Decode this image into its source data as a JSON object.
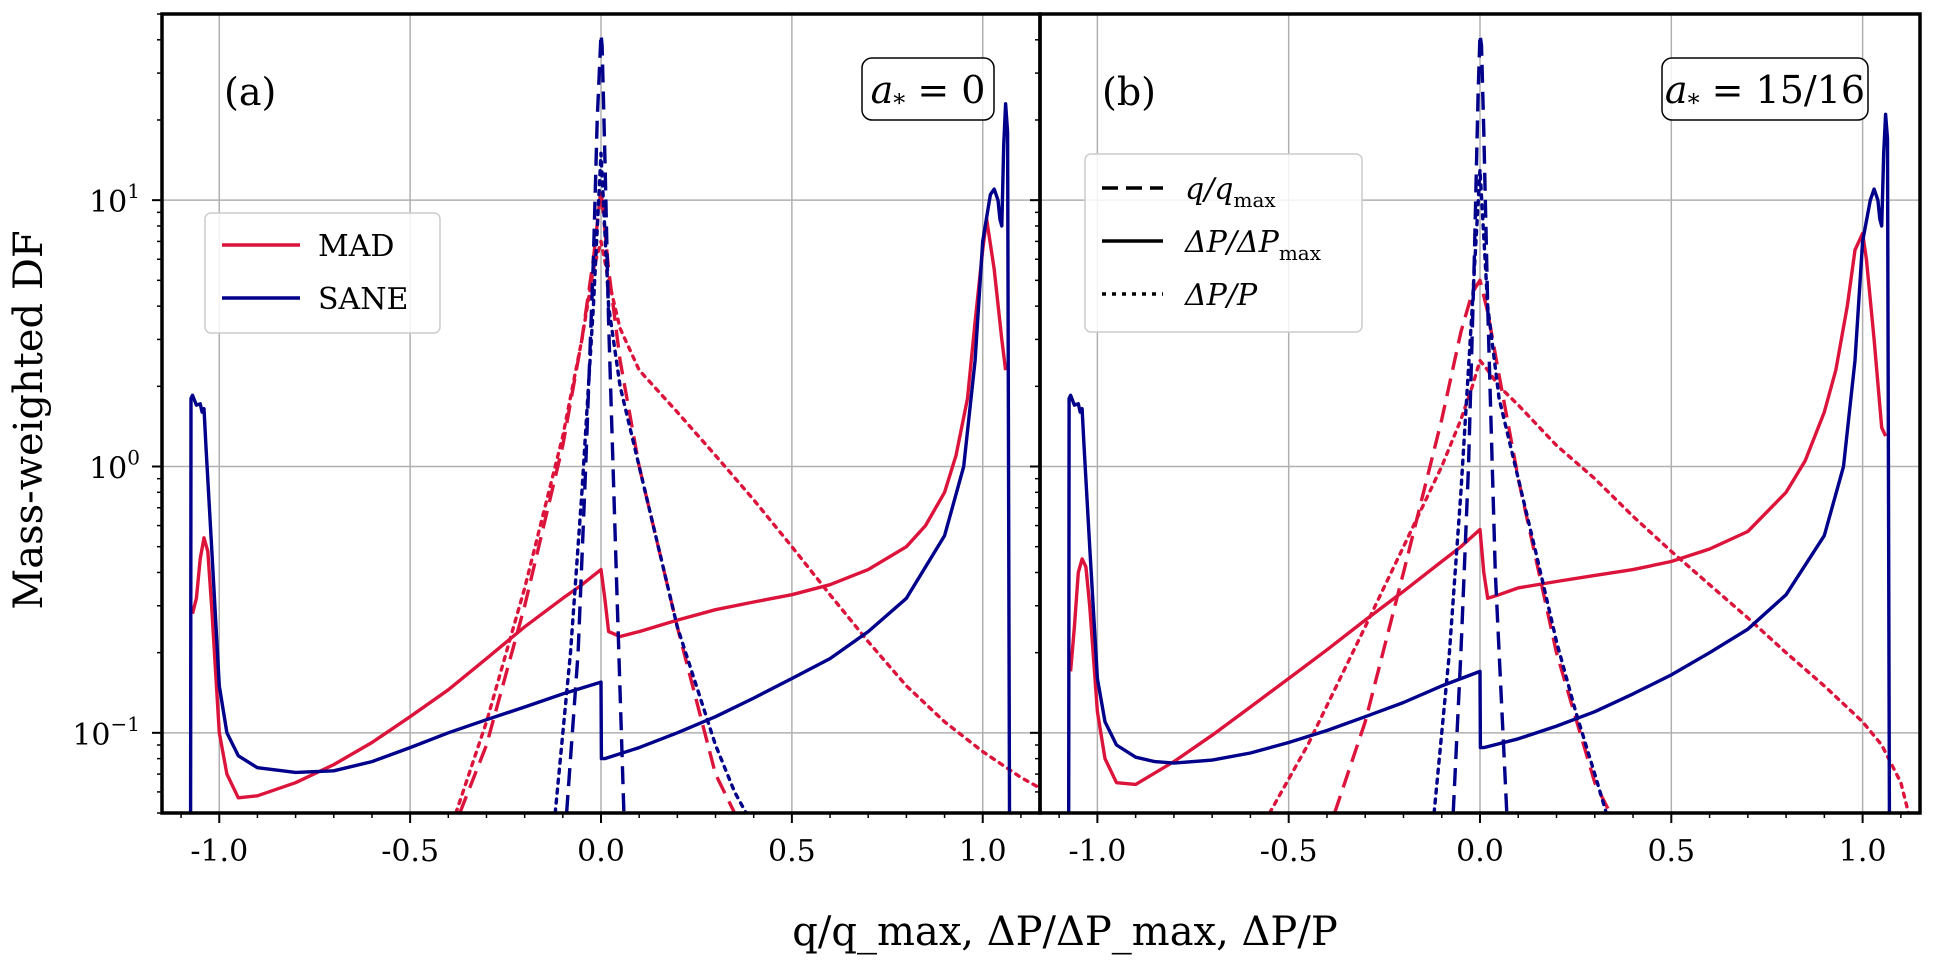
{
  "chart_data": {
    "type": "line",
    "xlabel": "q/q_max, ΔP/ΔP_max, ΔP/P",
    "ylabel": "Mass-weighted DF",
    "xlim": [
      -1.15,
      1.15
    ],
    "yscale": "log",
    "ylim": [
      0.05,
      50
    ],
    "x_ticks": [
      -1.0,
      -0.5,
      0.0,
      0.5,
      1.0
    ],
    "x_tick_labels": [
      "-1.0",
      "-0.5",
      "0.0",
      "0.5",
      "1.0"
    ],
    "y_ticks": [
      0.1,
      1,
      10
    ],
    "y_tick_labels": [
      "10",
      "10",
      "10"
    ],
    "y_tick_exponents": [
      "−1",
      "0",
      "1"
    ],
    "grid": true,
    "colors": {
      "MAD": "#dc143c",
      "SANE": "#00008b"
    },
    "legend_models": {
      "placement": "upper-left of panel (a)",
      "entries": [
        {
          "label": "MAD",
          "color": "#dc143c"
        },
        {
          "label": "SANE",
          "color": "#00008b"
        }
      ]
    },
    "legend_quantities": {
      "placement": "upper-left of panel (b)",
      "entries": [
        {
          "label": "q/q",
          "sub": "max",
          "style": "dashed"
        },
        {
          "label": "ΔP/ΔP",
          "sub": "max",
          "style": "solid"
        },
        {
          "label": "ΔP/P",
          "sub": "",
          "style": "dotted"
        }
      ]
    },
    "panels": [
      {
        "label": "(a)",
        "spin_label": "a",
        "spin_sub": "*",
        "spin_value": " = 0",
        "series": [
          {
            "name": "MAD q/q_max",
            "model": "MAD",
            "style": "dashed",
            "x": [
              -0.37,
              -0.3,
              -0.2,
              -0.1,
              -0.05,
              -0.02,
              0.0,
              0.02,
              0.05,
              0.1,
              0.2,
              0.3,
              0.35
            ],
            "y": [
              0.05,
              0.09,
              0.3,
              1.2,
              3.0,
              6.0,
              11.0,
              5.5,
              2.5,
              1.0,
              0.25,
              0.07,
              0.05
            ]
          },
          {
            "name": "MAD ΔP/ΔP_max",
            "model": "MAD",
            "style": "solid",
            "x": [
              -1.07,
              -1.06,
              -1.05,
              -1.04,
              -1.03,
              -1.02,
              -1.0,
              -0.98,
              -0.95,
              -0.9,
              -0.8,
              -0.7,
              -0.6,
              -0.5,
              -0.4,
              -0.3,
              -0.2,
              -0.1,
              -0.05,
              0.0,
              0.01,
              0.02,
              0.05,
              0.1,
              0.2,
              0.3,
              0.4,
              0.5,
              0.6,
              0.7,
              0.8,
              0.85,
              0.9,
              0.93,
              0.96,
              0.98,
              1.0,
              1.01,
              1.03,
              1.05,
              1.06
            ],
            "y": [
              0.28,
              0.32,
              0.45,
              0.54,
              0.48,
              0.3,
              0.1,
              0.07,
              0.057,
              0.058,
              0.065,
              0.076,
              0.092,
              0.115,
              0.145,
              0.19,
              0.25,
              0.32,
              0.36,
              0.41,
              0.32,
              0.24,
              0.23,
              0.24,
              0.265,
              0.29,
              0.31,
              0.33,
              0.36,
              0.41,
              0.5,
              0.6,
              0.8,
              1.1,
              1.8,
              3.5,
              6.5,
              8.5,
              5.5,
              3.0,
              2.3
            ]
          },
          {
            "name": "MAD ΔP/P",
            "model": "MAD",
            "style": "dotted",
            "x": [
              -0.38,
              -0.3,
              -0.2,
              -0.1,
              -0.05,
              -0.02,
              0.0,
              0.02,
              0.05,
              0.1,
              0.2,
              0.3,
              0.4,
              0.5,
              0.6,
              0.7,
              0.8,
              0.9,
              1.0,
              1.1,
              1.15
            ],
            "y": [
              0.05,
              0.11,
              0.35,
              1.3,
              3.0,
              5.5,
              7.0,
              5.0,
              3.3,
              2.3,
              1.6,
              1.1,
              0.75,
              0.5,
              0.33,
              0.22,
              0.15,
              0.11,
              0.085,
              0.068,
              0.062
            ]
          },
          {
            "name": "SANE q/q_max",
            "model": "SANE",
            "style": "dashed",
            "x": [
              -0.09,
              -0.06,
              -0.04,
              -0.02,
              -0.01,
              0.0,
              0.003,
              0.01,
              0.02,
              0.04,
              0.06
            ],
            "y": [
              0.05,
              0.2,
              1.0,
              6.0,
              20.0,
              42.0,
              38.0,
              15.0,
              3.5,
              0.4,
              0.05
            ]
          },
          {
            "name": "SANE ΔP/ΔP_max",
            "model": "SANE",
            "style": "solid",
            "x": [
              -1.075,
              -1.074,
              -1.07,
              -1.06,
              -1.05,
              -1.045,
              -1.04,
              -1.035,
              -1.02,
              -1.0,
              -0.98,
              -0.95,
              -0.9,
              -0.8,
              -0.7,
              -0.6,
              -0.5,
              -0.4,
              -0.3,
              -0.2,
              -0.1,
              0.0,
              0.001,
              0.01,
              0.1,
              0.2,
              0.3,
              0.4,
              0.5,
              0.6,
              0.7,
              0.8,
              0.9,
              0.95,
              0.98,
              1.0,
              1.02,
              1.03,
              1.04,
              1.045,
              1.05,
              1.055,
              1.06,
              1.065,
              1.07
            ],
            "y": [
              0.05,
              1.8,
              1.85,
              1.7,
              1.72,
              1.6,
              1.65,
              1.2,
              0.5,
              0.15,
              0.1,
              0.082,
              0.074,
              0.071,
              0.072,
              0.078,
              0.088,
              0.1,
              0.112,
              0.125,
              0.14,
              0.155,
              0.08,
              0.08,
              0.088,
              0.1,
              0.115,
              0.135,
              0.16,
              0.19,
              0.24,
              0.32,
              0.55,
              1.0,
              2.5,
              7.0,
              10.5,
              11.0,
              10.0,
              8.5,
              8.0,
              16.0,
              23.0,
              18.0,
              0.05
            ]
          },
          {
            "name": "SANE ΔP/P",
            "model": "SANE",
            "style": "dotted",
            "x": [
              -0.12,
              -0.08,
              -0.05,
              -0.02,
              0.0,
              0.02,
              0.05,
              0.1,
              0.15,
              0.2,
              0.25,
              0.3,
              0.35,
              0.38
            ],
            "y": [
              0.05,
              0.2,
              0.8,
              4.0,
              15.0,
              4.0,
              2.0,
              1.0,
              0.5,
              0.25,
              0.15,
              0.09,
              0.06,
              0.05
            ]
          }
        ]
      },
      {
        "label": "(b)",
        "spin_label": "a",
        "spin_sub": "*",
        "spin_value": " = 15/16",
        "series": [
          {
            "name": "MAD q/q_max",
            "model": "MAD",
            "style": "dashed",
            "x": [
              -0.38,
              -0.3,
              -0.2,
              -0.1,
              -0.05,
              -0.02,
              0.0,
              0.02,
              0.05,
              0.1,
              0.2,
              0.3,
              0.34
            ],
            "y": [
              0.05,
              0.11,
              0.4,
              1.5,
              3.2,
              4.5,
              5.0,
              3.8,
              2.2,
              0.9,
              0.2,
              0.065,
              0.05
            ]
          },
          {
            "name": "MAD ΔP/ΔP_max",
            "model": "MAD",
            "style": "solid",
            "x": [
              -1.07,
              -1.06,
              -1.05,
              -1.04,
              -1.03,
              -1.02,
              -1.0,
              -0.98,
              -0.95,
              -0.9,
              -0.8,
              -0.7,
              -0.6,
              -0.5,
              -0.4,
              -0.3,
              -0.2,
              -0.1,
              -0.05,
              0.0,
              0.01,
              0.02,
              0.05,
              0.1,
              0.2,
              0.3,
              0.4,
              0.5,
              0.6,
              0.7,
              0.8,
              0.85,
              0.9,
              0.93,
              0.96,
              0.98,
              1.0,
              1.01,
              1.03,
              1.05,
              1.06
            ],
            "y": [
              0.17,
              0.25,
              0.4,
              0.45,
              0.42,
              0.3,
              0.12,
              0.08,
              0.065,
              0.064,
              0.078,
              0.098,
              0.125,
              0.16,
              0.205,
              0.265,
              0.34,
              0.44,
              0.5,
              0.58,
              0.4,
              0.32,
              0.33,
              0.35,
              0.37,
              0.39,
              0.41,
              0.44,
              0.49,
              0.57,
              0.8,
              1.05,
              1.6,
              2.3,
              4.0,
              6.5,
              7.5,
              6.0,
              3.0,
              1.4,
              1.3
            ]
          },
          {
            "name": "MAD ΔP/P",
            "model": "MAD",
            "style": "dotted",
            "x": [
              -0.55,
              -0.45,
              -0.3,
              -0.2,
              -0.1,
              -0.05,
              -0.02,
              0.0,
              0.02,
              0.05,
              0.1,
              0.2,
              0.3,
              0.4,
              0.5,
              0.6,
              0.7,
              0.8,
              0.9,
              1.0,
              1.05,
              1.1,
              1.12
            ],
            "y": [
              0.05,
              0.09,
              0.25,
              0.5,
              1.0,
              1.5,
              2.0,
              2.5,
              2.3,
              2.0,
              1.7,
              1.2,
              0.9,
              0.65,
              0.48,
              0.36,
              0.27,
              0.2,
              0.15,
              0.11,
              0.09,
              0.065,
              0.05
            ]
          },
          {
            "name": "SANE q/q_max",
            "model": "SANE",
            "style": "dashed",
            "x": [
              -0.07,
              -0.05,
              -0.03,
              -0.015,
              -0.005,
              0.0,
              0.004,
              0.01,
              0.02,
              0.04,
              0.07
            ],
            "y": [
              0.05,
              0.2,
              1.0,
              6.0,
              25.0,
              42.0,
              38.0,
              18.0,
              4.0,
              0.4,
              0.05
            ]
          },
          {
            "name": "SANE ΔP/ΔP_max",
            "model": "SANE",
            "style": "solid",
            "x": [
              -1.075,
              -1.074,
              -1.07,
              -1.06,
              -1.05,
              -1.045,
              -1.04,
              -1.035,
              -1.02,
              -1.0,
              -0.98,
              -0.95,
              -0.9,
              -0.85,
              -0.8,
              -0.7,
              -0.6,
              -0.5,
              -0.4,
              -0.3,
              -0.2,
              -0.1,
              0.0,
              0.001,
              0.01,
              0.1,
              0.2,
              0.3,
              0.4,
              0.5,
              0.6,
              0.7,
              0.8,
              0.9,
              0.95,
              0.98,
              1.0,
              1.02,
              1.03,
              1.04,
              1.045,
              1.05,
              1.055,
              1.06,
              1.065,
              1.07
            ],
            "y": [
              0.05,
              1.8,
              1.85,
              1.7,
              1.72,
              1.6,
              1.65,
              1.2,
              0.5,
              0.16,
              0.11,
              0.09,
              0.081,
              0.078,
              0.077,
              0.079,
              0.084,
              0.092,
              0.102,
              0.115,
              0.13,
              0.15,
              0.17,
              0.088,
              0.088,
              0.095,
              0.106,
              0.12,
              0.14,
              0.165,
              0.2,
              0.245,
              0.33,
              0.55,
              1.0,
              2.5,
              7.0,
              10.0,
              11.0,
              10.0,
              8.5,
              8.0,
              15.0,
              21.0,
              17.0,
              0.05
            ]
          },
          {
            "name": "SANE ΔP/P",
            "model": "SANE",
            "style": "dotted",
            "x": [
              -0.12,
              -0.08,
              -0.05,
              -0.02,
              0.0,
              0.02,
              0.05,
              0.1,
              0.15,
              0.2,
              0.25,
              0.3,
              0.33
            ],
            "y": [
              0.05,
              0.2,
              0.8,
              4.0,
              13.0,
              4.0,
              1.8,
              0.9,
              0.45,
              0.22,
              0.12,
              0.07,
              0.05
            ]
          }
        ]
      }
    ]
  }
}
